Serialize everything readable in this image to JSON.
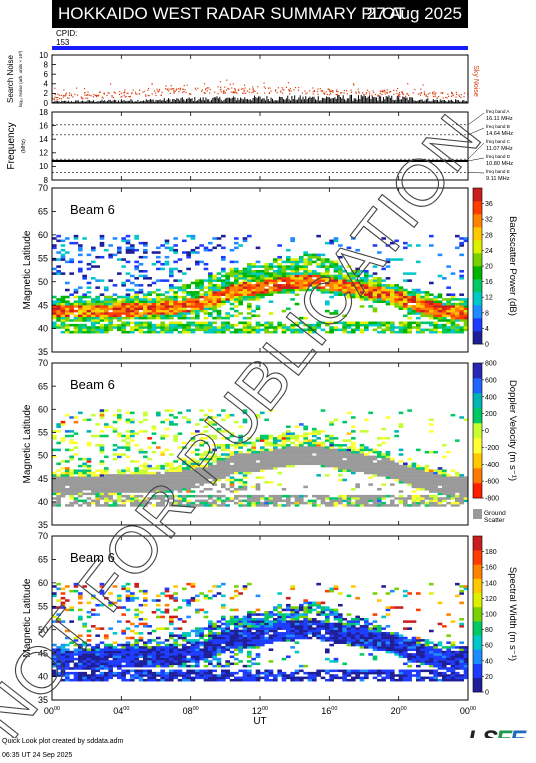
{
  "header": {
    "title": "HOKKAIDO WEST RADAR SUMMARY PLOT",
    "date": "27 Aug 2025",
    "cpid_label": "CPID:",
    "cpid_value": "153"
  },
  "colors": {
    "cpid_bar": "#1a1aff",
    "noise_red": "#d84010",
    "ground_scatter": "#9a9a9a"
  },
  "watermark": "NOT FOR PUBLICATION",
  "footer": {
    "line1": "Quick Look plot created by sddata.adm",
    "line2": "06:35 UT 24 Sep 2025",
    "logo": "ISEE"
  },
  "chart_data": [
    {
      "type": "line",
      "name": "search-noise",
      "ylabel": "Search Noise",
      "ylabel_sub": "log₁₀ Noise (arb. units × 10³)",
      "right_label": "Sky Noise",
      "ylim": [
        0,
        10
      ],
      "yticks": [
        "0",
        "2",
        "4",
        "6",
        "8",
        "10"
      ],
      "xlim": [
        0,
        24
      ],
      "series": [
        {
          "name": "Sky Noise",
          "x": [
            0,
            2,
            4,
            6,
            8,
            10,
            12,
            14,
            16,
            18,
            20,
            22,
            24
          ],
          "values": [
            1.5,
            1.7,
            2.0,
            2.3,
            2.6,
            2.8,
            2.8,
            2.7,
            2.5,
            2.3,
            2.1,
            1.8,
            1.6
          ]
        },
        {
          "name": "Search Noise",
          "x": [
            0,
            2,
            4,
            6,
            8,
            10,
            12,
            14,
            16,
            18,
            20,
            22,
            24
          ],
          "values": [
            0.3,
            0.4,
            0.5,
            0.6,
            0.8,
            0.9,
            1.0,
            1.0,
            1.1,
            1.1,
            1.0,
            0.6,
            0.4
          ]
        }
      ]
    },
    {
      "type": "line",
      "name": "frequency",
      "ylabel": "Frequency",
      "ylabel_sub": "(MHz)",
      "ylim": [
        8,
        18
      ],
      "yticks": [
        "8",
        "10",
        "12",
        "14",
        "16",
        "18"
      ],
      "xlim": [
        0,
        24
      ],
      "freq_bands": [
        {
          "label": "freq band A",
          "value": "16.11 MHz",
          "mhz": 16.11
        },
        {
          "label": "freq band B",
          "value": "14.64 MHz",
          "mhz": 14.64
        },
        {
          "label": "freq band C",
          "value": "11.07 MHz",
          "mhz": 11.07
        },
        {
          "label": "freq band D",
          "value": "10.80 MHz",
          "mhz": 10.8
        },
        {
          "label": "freq band E",
          "value": "9.11 MHz",
          "mhz": 9.11
        }
      ],
      "series": [
        {
          "name": "operating frequency",
          "x": [
            0,
            24
          ],
          "values": [
            10.8,
            10.8
          ]
        }
      ]
    },
    {
      "type": "heatmap",
      "name": "power",
      "annotation": "Beam  6",
      "ylabel": "Magnetic Latitude",
      "ylim": [
        35,
        70
      ],
      "yticks": [
        "35",
        "40",
        "45",
        "50",
        "55",
        "60",
        "65",
        "70"
      ],
      "xlim": [
        0,
        24
      ],
      "colorbar": {
        "label": "Backscatter Power (dB)",
        "range": [
          0,
          40
        ],
        "ticks": [
          "0",
          "4",
          "8",
          "12",
          "16",
          "20",
          "24",
          "28",
          "32",
          "36"
        ],
        "colors": [
          "#1e1e96",
          "#1e3cff",
          "#1e8cff",
          "#00c8c8",
          "#00c864",
          "#00b400",
          "#78d200",
          "#dcf000",
          "#ffc800",
          "#ff8200",
          "#ff3c00",
          "#c81e1e"
        ]
      },
      "band_center_lat": [
        43.5,
        43.5,
        43.5,
        43.8,
        44.0,
        44.5,
        45.5,
        48.0,
        48.5,
        49.5,
        50.0,
        49.0,
        48.0,
        47.0,
        45.0,
        43.5,
        43.0
      ],
      "band_upper_lat": [
        47,
        47,
        47,
        47,
        48,
        49,
        51,
        53,
        54,
        55,
        56,
        54,
        52,
        50,
        48,
        47,
        46
      ]
    },
    {
      "type": "heatmap",
      "name": "velocity",
      "annotation": "Beam  6",
      "ylabel": "Magnetic Latitude",
      "ylim": [
        35,
        70
      ],
      "yticks": [
        "35",
        "40",
        "45",
        "50",
        "55",
        "60",
        "65",
        "70"
      ],
      "xlim": [
        0,
        24
      ],
      "colorbar": {
        "label": "Doppler Velocity (m s⁻¹)",
        "range": [
          -800,
          800
        ],
        "ticks": [
          "-800",
          "-600",
          "-400",
          "-200",
          "0",
          "200",
          "400",
          "600",
          "800"
        ],
        "colors": [
          "#ff1e00",
          "#ff7800",
          "#ffc800",
          "#ffff32",
          "#c8ff32",
          "#00c864",
          "#00b4b4",
          "#1e64ff",
          "#2828b4"
        ]
      },
      "ground_scatter_label": "Ground Scatter"
    },
    {
      "type": "heatmap",
      "name": "width",
      "annotation": "Beam  6",
      "ylabel": "Magnetic Latitude",
      "ylim": [
        35,
        70
      ],
      "yticks": [
        "35",
        "40",
        "45",
        "50",
        "55",
        "60",
        "65",
        "70"
      ],
      "xlim": [
        0,
        24
      ],
      "colorbar": {
        "label": "Spectral Width (m s⁻¹)",
        "range": [
          0,
          200
        ],
        "ticks": [
          "0",
          "20",
          "40",
          "60",
          "80",
          "100",
          "120",
          "140",
          "160",
          "180"
        ],
        "colors": [
          "#1e1e96",
          "#1e3cff",
          "#1e8cff",
          "#00c8c8",
          "#00c864",
          "#78d200",
          "#dcf000",
          "#ffc800",
          "#ff8200",
          "#ff3c00",
          "#c81e1e"
        ]
      }
    },
    {
      "type": "axis",
      "name": "time-axis",
      "xlabel": "UT",
      "xlim": [
        0,
        24
      ],
      "xticks": [
        {
          "hour": 0,
          "label": "00",
          "sup": "00"
        },
        {
          "hour": 4,
          "label": "04",
          "sup": "00"
        },
        {
          "hour": 8,
          "label": "08",
          "sup": "00"
        },
        {
          "hour": 12,
          "label": "12",
          "sup": "00"
        },
        {
          "hour": 16,
          "label": "16",
          "sup": "00"
        },
        {
          "hour": 20,
          "label": "20",
          "sup": "00"
        },
        {
          "hour": 24,
          "label": "00",
          "sup": "00"
        }
      ]
    }
  ]
}
